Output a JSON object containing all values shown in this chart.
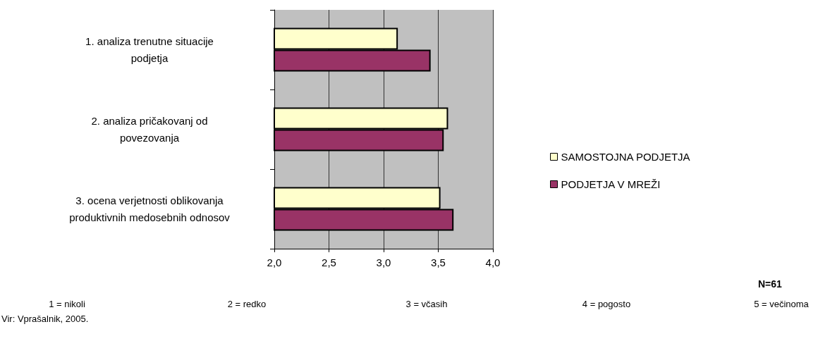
{
  "chart_data": {
    "type": "bar",
    "orientation": "horizontal",
    "categories": [
      "1. analiza trenutne situacije\npodjetja",
      "2. analiza pričakovanj od\npovezovanja",
      "3. ocena verjetnosti oblikovanja\nproduktivnih medosebnih odnosov"
    ],
    "series": [
      {
        "name": "SAMOSTOJNA PODJETJA",
        "color": "#ffffcc",
        "values": [
          3.13,
          3.59,
          3.52
        ]
      },
      {
        "name": "PODJETJA V MREŽI",
        "color": "#993366",
        "values": [
          3.43,
          3.55,
          3.64
        ]
      }
    ],
    "xlim": [
      2.0,
      4.0
    ],
    "xticks": [
      {
        "value": 2.0,
        "label": "2,0"
      },
      {
        "value": 2.5,
        "label": "2,5"
      },
      {
        "value": 3.0,
        "label": "3,0"
      },
      {
        "value": 3.5,
        "label": "3,5"
      },
      {
        "value": 4.0,
        "label": "4,0"
      }
    ],
    "grid": "x",
    "legend": "right",
    "annotations": [
      "N=61",
      "1 = nikoli",
      "2 = redko",
      "3 = včasih",
      "4 = pogosto",
      "5 = večinoma",
      "Vir: Vprašalnik, 2005."
    ]
  }
}
